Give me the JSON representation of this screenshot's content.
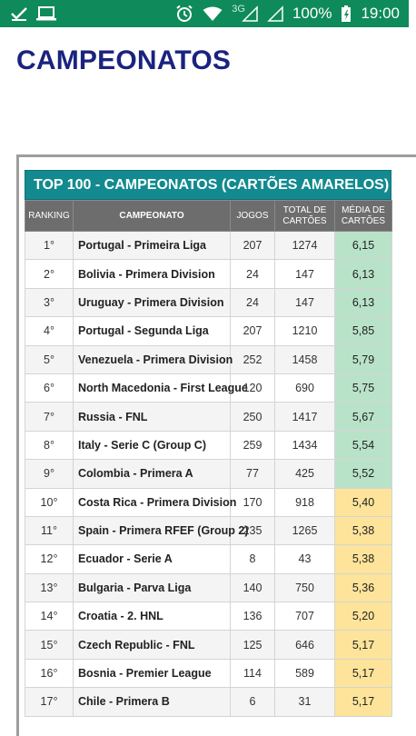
{
  "status_bar": {
    "network": "3G",
    "battery": "100%",
    "time": "19:00",
    "bg_color": "#0f8b5b"
  },
  "page": {
    "title": "CAMPEONATOS"
  },
  "table": {
    "title": "TOP 100 - CAMPEONATOS (CARTÕES AMARELOS)",
    "columns": [
      "RANKING",
      "CAMPEONATO",
      "JOGOS",
      "TOTAL DE CARTÕES",
      "MÉDIA DE CARTÕES"
    ],
    "header_color": "#138a8f",
    "highlight_colors": {
      "green": "#b9e3c9",
      "yellow": "#fde49a"
    },
    "rows": [
      {
        "rank": "1°",
        "league": "Portugal - Primeira Liga",
        "games": "207",
        "total": "1274",
        "avg": "6,15",
        "tier": "green"
      },
      {
        "rank": "2°",
        "league": "Bolivia - Primera Division",
        "games": "24",
        "total": "147",
        "avg": "6,13",
        "tier": "green"
      },
      {
        "rank": "3°",
        "league": "Uruguay - Primera Division",
        "games": "24",
        "total": "147",
        "avg": "6,13",
        "tier": "green"
      },
      {
        "rank": "4°",
        "league": "Portugal - Segunda Liga",
        "games": "207",
        "total": "1210",
        "avg": "5,85",
        "tier": "green"
      },
      {
        "rank": "5°",
        "league": "Venezuela - Primera Division",
        "games": "252",
        "total": "1458",
        "avg": "5,79",
        "tier": "green"
      },
      {
        "rank": "6°",
        "league": "North Macedonia - First League",
        "games": "120",
        "total": "690",
        "avg": "5,75",
        "tier": "green"
      },
      {
        "rank": "7°",
        "league": "Russia - FNL",
        "games": "250",
        "total": "1417",
        "avg": "5,67",
        "tier": "green"
      },
      {
        "rank": "8°",
        "league": "Italy - Serie C (Group C)",
        "games": "259",
        "total": "1434",
        "avg": "5,54",
        "tier": "green"
      },
      {
        "rank": "9°",
        "league": "Colombia - Primera A",
        "games": "77",
        "total": "425",
        "avg": "5,52",
        "tier": "green"
      },
      {
        "rank": "10°",
        "league": "Costa Rica - Primera Division",
        "games": "170",
        "total": "918",
        "avg": "5,40",
        "tier": "yellow"
      },
      {
        "rank": "11°",
        "league": "Spain - Primera RFEF (Group 2)",
        "games": "235",
        "total": "1265",
        "avg": "5,38",
        "tier": "yellow"
      },
      {
        "rank": "12°",
        "league": "Ecuador - Serie A",
        "games": "8",
        "total": "43",
        "avg": "5,38",
        "tier": "yellow"
      },
      {
        "rank": "13°",
        "league": "Bulgaria - Parva Liga",
        "games": "140",
        "total": "750",
        "avg": "5,36",
        "tier": "yellow"
      },
      {
        "rank": "14°",
        "league": "Croatia - 2. HNL",
        "games": "136",
        "total": "707",
        "avg": "5,20",
        "tier": "yellow"
      },
      {
        "rank": "15°",
        "league": "Czech Republic - FNL",
        "games": "125",
        "total": "646",
        "avg": "5,17",
        "tier": "yellow"
      },
      {
        "rank": "16°",
        "league": "Bosnia - Premier League",
        "games": "114",
        "total": "589",
        "avg": "5,17",
        "tier": "yellow"
      },
      {
        "rank": "17°",
        "league": "Chile - Primera B",
        "games": "6",
        "total": "31",
        "avg": "5,17",
        "tier": "yellow"
      }
    ]
  }
}
